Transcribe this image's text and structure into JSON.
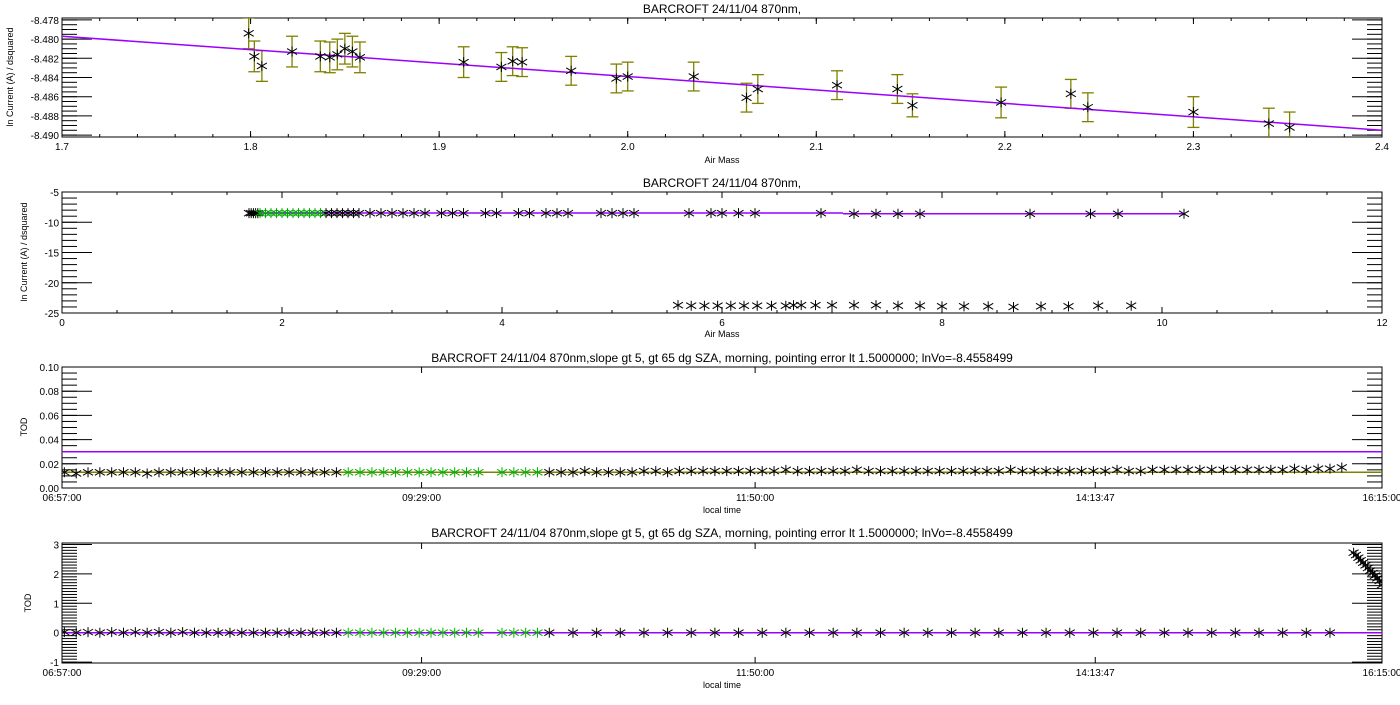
{
  "colors": {
    "star": "#000000",
    "selected": "#00b000",
    "fit": "#9b00ff",
    "errorbar": "#808000",
    "olive_line": "#808000"
  },
  "chart_data": [
    {
      "type": "scatter",
      "title": "BARCROFT 24/11/04 870nm,",
      "xlabel": "Air Mass",
      "ylabel": "ln Current (A) / dsquared",
      "xlim": [
        1.7,
        2.4
      ],
      "ylim": [
        -8.4902,
        -8.4778
      ],
      "xticks": [
        1.7,
        1.8,
        1.9,
        2.0,
        2.1,
        2.2,
        2.3,
        2.4
      ],
      "xtick_labels": [
        "1.7",
        "1.8",
        "1.9",
        "2.0",
        "2.1",
        "2.2",
        "2.3",
        "2.4"
      ],
      "xminor": 0.02,
      "yticks": [
        -8.478,
        -8.48,
        -8.482,
        -8.484,
        -8.486,
        -8.488,
        -8.49
      ],
      "ytick_labels": [
        "-8.478",
        "-8.480",
        "-8.482",
        "-8.484",
        "-8.486",
        "-8.488",
        "-8.490"
      ],
      "yminor": 0.0005,
      "series": [
        {
          "name": "measurements",
          "marker": "asterisk",
          "color": "#000000",
          "x": [
            1.799,
            1.802,
            1.806,
            1.822,
            1.837,
            1.842,
            1.846,
            1.85,
            1.854,
            1.858,
            1.913,
            1.933,
            1.939,
            1.944,
            1.97,
            1.994,
            2.0,
            2.035,
            2.063,
            2.069,
            2.111,
            2.143,
            2.151,
            2.198,
            2.235,
            2.244,
            2.3,
            2.34,
            2.351
          ],
          "y": [
            -8.4794,
            -8.4818,
            -8.4828,
            -8.4813,
            -8.4818,
            -8.4819,
            -8.4816,
            -8.481,
            -8.4813,
            -8.4819,
            -8.4824,
            -8.4829,
            -8.4823,
            -8.4824,
            -8.4833,
            -8.4841,
            -8.4839,
            -8.4839,
            -8.4861,
            -8.4852,
            -8.4848,
            -8.4852,
            -8.4869,
            -8.4866,
            -8.4857,
            -8.4871,
            -8.4876,
            -8.4888,
            -8.4892
          ],
          "err": [
            0.0016,
            0.0016,
            0.0016,
            0.0016,
            0.0016,
            0.0016,
            0.0016,
            0.0016,
            0.0016,
            0.0016,
            0.0016,
            0.0015,
            0.0015,
            0.0015,
            0.0015,
            0.0015,
            0.0015,
            0.0015,
            0.0015,
            0.0015,
            0.0015,
            0.0015,
            0.0012,
            0.0016,
            0.0015,
            0.0015,
            0.0016,
            0.0016,
            0.0016
          ]
        }
      ],
      "lines": [
        {
          "name": "fit",
          "color": "#9b00ff",
          "x": [
            1.7,
            2.4
          ],
          "y": [
            -8.4797,
            -8.4895
          ]
        }
      ]
    },
    {
      "type": "scatter",
      "title": "BARCROFT 24/11/04 870nm,",
      "xlabel": "Air Mass",
      "ylabel": "ln Current (A) / dsquared",
      "xlim": [
        0,
        12
      ],
      "ylim": [
        -25,
        -5
      ],
      "xticks": [
        0,
        2,
        4,
        6,
        8,
        10,
        12
      ],
      "xtick_labels": [
        "0",
        "2",
        "4",
        "6",
        "8",
        "10",
        "12"
      ],
      "xminor": 0.5,
      "yticks": [
        -5,
        -10,
        -15,
        -20,
        -25
      ],
      "ytick_labels": [
        "-5",
        "-10",
        "-15",
        "-20",
        "-25"
      ],
      "yminor": 1,
      "series": [
        {
          "name": "all",
          "marker": "asterisk",
          "color": "#000000",
          "x": [
            1.7,
            1.72,
            1.74,
            1.76,
            1.78,
            2.4,
            2.45,
            2.5,
            2.55,
            2.6,
            2.65,
            2.7,
            2.8,
            2.9,
            3.0,
            3.1,
            3.2,
            3.3,
            3.45,
            3.55,
            3.65,
            3.85,
            3.95,
            4.15,
            4.25,
            4.4,
            4.5,
            4.6,
            4.9,
            5.0,
            5.1,
            5.2,
            5.7,
            5.9,
            6.0,
            6.15,
            6.3,
            6.9,
            7.2,
            7.4,
            7.6,
            7.8,
            8.8,
            9.35,
            9.6,
            10.2
          ],
          "y": [
            -8.5,
            -8.5,
            -8.5,
            -8.5,
            -8.5,
            -8.5,
            -8.5,
            -8.5,
            -8.5,
            -8.5,
            -8.5,
            -8.5,
            -8.5,
            -8.5,
            -8.5,
            -8.5,
            -8.5,
            -8.5,
            -8.5,
            -8.5,
            -8.5,
            -8.5,
            -8.5,
            -8.5,
            -8.5,
            -8.5,
            -8.5,
            -8.5,
            -8.5,
            -8.5,
            -8.5,
            -8.5,
            -8.5,
            -8.5,
            -8.5,
            -8.5,
            -8.5,
            -8.5,
            -8.6,
            -8.6,
            -8.6,
            -8.6,
            -8.6,
            -8.6,
            -8.6,
            -8.6
          ]
        },
        {
          "name": "rejected-low",
          "marker": "asterisk",
          "color": "#000000",
          "x": [
            5.6,
            5.72,
            5.84,
            5.96,
            6.08,
            6.2,
            6.32,
            6.45,
            6.58,
            6.65,
            6.72,
            6.85,
            7.0,
            7.2,
            7.4,
            7.6,
            7.8,
            8.0,
            8.2,
            8.42,
            8.65,
            8.9,
            9.15,
            9.42,
            9.72
          ],
          "y": [
            -23.7,
            -23.8,
            -23.8,
            -23.8,
            -23.8,
            -23.8,
            -23.8,
            -23.8,
            -23.8,
            -23.7,
            -23.7,
            -23.7,
            -23.7,
            -23.7,
            -23.7,
            -23.8,
            -23.8,
            -23.9,
            -23.9,
            -23.9,
            -24.0,
            -23.9,
            -23.9,
            -23.8,
            -23.8
          ]
        },
        {
          "name": "selected",
          "marker": "asterisk",
          "color": "#00b000",
          "x": [
            1.8,
            1.85,
            1.9,
            1.95,
            2.0,
            2.05,
            2.1,
            2.15,
            2.2,
            2.25,
            2.3,
            2.35
          ],
          "y": [
            -8.5,
            -8.5,
            -8.5,
            -8.5,
            -8.5,
            -8.5,
            -8.5,
            -8.5,
            -8.5,
            -8.5,
            -8.5,
            -8.5
          ]
        }
      ],
      "lines": [
        {
          "name": "fit-1",
          "color": "#9b00ff",
          "x": [
            1.7,
            7.1
          ],
          "y": [
            -8.48,
            -8.48
          ]
        },
        {
          "name": "fit-2",
          "color": "#9b00ff",
          "x": [
            7.1,
            10.2
          ],
          "y": [
            -8.6,
            -8.6
          ]
        }
      ]
    },
    {
      "type": "scatter",
      "title": "BARCROFT 24/11/04 870nm,slope gt 5, gt 65 dg SZA, morning, pointing error lt 1.5000000; lnVo=-8.4558499",
      "xlabel": "local time",
      "ylabel": "TOD",
      "xlim": [
        "06:57:00",
        "16:15:00"
      ],
      "ylim": [
        0,
        0.1
      ],
      "xticks": [
        "06:57:00",
        "09:29:00",
        "11:50:00",
        "14:13:47",
        "16:15:00"
      ],
      "xtick_labels": [
        "06:57:00",
        "09:29:00",
        "11:50:00",
        "14:13:47",
        "16:15:00"
      ],
      "yticks": [
        0,
        0.02,
        0.04,
        0.06,
        0.08,
        0.1
      ],
      "ytick_labels": [
        "0.00",
        "0.02",
        "0.04",
        "0.06",
        "0.08",
        "0.10"
      ],
      "yminor": 0.005,
      "series": [
        {
          "name": "morning-1",
          "marker": "asterisk",
          "color": "#000000",
          "x": [
            "06:58",
            "07:03",
            "07:08",
            "07:13",
            "07:18",
            "07:23",
            "07:28",
            "07:33",
            "07:38",
            "07:43",
            "07:48",
            "07:53",
            "07:58",
            "08:03",
            "08:08",
            "08:13",
            "08:18",
            "08:23",
            "08:28",
            "08:33",
            "08:38",
            "08:43",
            "08:48",
            "08:53"
          ],
          "y": [
            0.013,
            0.012,
            0.013,
            0.013,
            0.013,
            0.013,
            0.013,
            0.012,
            0.013,
            0.013,
            0.013,
            0.013,
            0.013,
            0.013,
            0.013,
            0.013,
            0.013,
            0.013,
            0.013,
            0.013,
            0.013,
            0.013,
            0.013,
            0.013
          ]
        },
        {
          "name": "selected",
          "marker": "asterisk",
          "color": "#00b000",
          "x": [
            "08:58",
            "09:03",
            "09:08",
            "09:13",
            "09:18",
            "09:23",
            "09:28",
            "09:33",
            "09:38",
            "09:43",
            "09:48",
            "09:53",
            "10:03",
            "10:08",
            "10:13",
            "10:18"
          ],
          "y": [
            0.013,
            0.013,
            0.013,
            0.013,
            0.013,
            0.013,
            0.013,
            0.013,
            0.013,
            0.013,
            0.013,
            0.013,
            0.013,
            0.013,
            0.013,
            0.013
          ]
        },
        {
          "name": "rest",
          "marker": "asterisk",
          "color": "#000000",
          "x": [
            "10:23",
            "10:28",
            "10:33",
            "10:38",
            "10:43",
            "10:48",
            "10:53",
            "10:58",
            "11:03",
            "11:08",
            "11:13",
            "11:18",
            "11:23",
            "11:28",
            "11:33",
            "11:38",
            "11:43",
            "11:48",
            "11:53",
            "11:58",
            "12:03",
            "12:08",
            "12:13",
            "12:18",
            "12:23",
            "12:28",
            "12:33",
            "12:38",
            "12:43",
            "12:48",
            "12:53",
            "12:58",
            "13:03",
            "13:08",
            "13:13",
            "13:18",
            "13:23",
            "13:28",
            "13:33",
            "13:38",
            "13:43",
            "13:48",
            "13:53",
            "13:58",
            "14:03",
            "14:08",
            "14:13",
            "14:18",
            "14:23",
            "14:28",
            "14:33",
            "14:38",
            "14:43",
            "14:48",
            "14:53",
            "14:58",
            "15:03",
            "15:08",
            "15:13",
            "15:18",
            "15:23",
            "15:28",
            "15:33",
            "15:38",
            "15:43",
            "15:48",
            "15:53",
            "15:58"
          ],
          "y": [
            0.013,
            0.013,
            0.013,
            0.014,
            0.013,
            0.013,
            0.013,
            0.013,
            0.014,
            0.014,
            0.013,
            0.014,
            0.014,
            0.014,
            0.014,
            0.014,
            0.014,
            0.014,
            0.014,
            0.014,
            0.015,
            0.014,
            0.014,
            0.014,
            0.014,
            0.014,
            0.015,
            0.014,
            0.014,
            0.014,
            0.014,
            0.014,
            0.014,
            0.014,
            0.014,
            0.014,
            0.014,
            0.014,
            0.014,
            0.015,
            0.014,
            0.014,
            0.014,
            0.014,
            0.014,
            0.014,
            0.014,
            0.014,
            0.015,
            0.014,
            0.014,
            0.015,
            0.015,
            0.015,
            0.015,
            0.015,
            0.015,
            0.015,
            0.015,
            0.015,
            0.015,
            0.015,
            0.015,
            0.016,
            0.015,
            0.016,
            0.016,
            0.017
          ]
        }
      ],
      "lines": [
        {
          "name": "threshold",
          "color": "#9b00ff",
          "x": [
            "06:57:00",
            "16:15:00"
          ],
          "y": [
            0.03,
            0.03
          ]
        },
        {
          "name": "mean",
          "color": "#808000",
          "x": [
            "06:57:00",
            "16:15:00"
          ],
          "y": [
            0.013,
            0.013
          ]
        }
      ]
    },
    {
      "type": "scatter",
      "title": "BARCROFT 24/11/04 870nm,slope gt 5, gt 65 dg SZA, morning, pointing error lt 1.5000000; lnVo=-8.4558499",
      "xlabel": "local time",
      "ylabel": "TOD",
      "xlim": [
        "06:57:00",
        "16:15:00"
      ],
      "ylim": [
        -1.03,
        3.05
      ],
      "xticks": [
        "06:57:00",
        "09:29:00",
        "11:50:00",
        "14:13:47",
        "16:15:00"
      ],
      "xtick_labels": [
        "06:57:00",
        "09:29:00",
        "11:50:00",
        "14:13:47",
        "16:15:00"
      ],
      "yticks": [
        -1,
        0,
        1,
        2,
        3
      ],
      "ytick_labels": [
        "-1",
        "0",
        "1",
        "2",
        "3"
      ],
      "yminor": 0.1,
      "series": [
        {
          "name": "morning-1",
          "marker": "asterisk",
          "color": "#000000",
          "x": [
            "06:58",
            "07:03",
            "07:08",
            "07:13",
            "07:18",
            "07:23",
            "07:28",
            "07:33",
            "07:38",
            "07:43",
            "07:48",
            "07:53",
            "07:58",
            "08:03",
            "08:08",
            "08:13",
            "08:18",
            "08:23",
            "08:28",
            "08:33",
            "08:38",
            "08:43",
            "08:48",
            "08:53"
          ],
          "y": [
            0.02,
            0,
            0.02,
            0,
            0.02,
            0,
            0.02,
            0,
            0.02,
            0,
            0.02,
            0,
            0,
            0,
            0,
            0,
            0,
            0,
            0,
            0,
            0,
            0,
            0,
            0
          ]
        },
        {
          "name": "selected",
          "marker": "asterisk",
          "color": "#00b000",
          "x": [
            "08:58",
            "09:03",
            "09:08",
            "09:13",
            "09:18",
            "09:23",
            "09:28",
            "09:33",
            "09:38",
            "09:43",
            "09:48",
            "09:53",
            "10:03",
            "10:08",
            "10:13",
            "10:18"
          ],
          "y": [
            0,
            0,
            0,
            0,
            0,
            0,
            0,
            0,
            0,
            0,
            0,
            0,
            0,
            0,
            0,
            0
          ]
        },
        {
          "name": "rest",
          "marker": "asterisk",
          "color": "#000000",
          "x": [
            "10:23",
            "10:33",
            "10:43",
            "10:53",
            "11:03",
            "11:13",
            "11:23",
            "11:33",
            "11:43",
            "11:53",
            "12:03",
            "12:13",
            "12:23",
            "12:33",
            "12:43",
            "12:53",
            "13:03",
            "13:13",
            "13:23",
            "13:33",
            "13:43",
            "13:53",
            "14:03",
            "14:13",
            "14:23",
            "14:33",
            "14:43",
            "14:53",
            "15:03",
            "15:13",
            "15:23",
            "15:33",
            "15:43",
            "15:53"
          ],
          "y": [
            0,
            0,
            0,
            0,
            0,
            0,
            0,
            0,
            0,
            0,
            0,
            0,
            0,
            0,
            0,
            0,
            0,
            0,
            0,
            0,
            0,
            0,
            0,
            0,
            0,
            0,
            0,
            0,
            0,
            0,
            0,
            0,
            0,
            0
          ]
        },
        {
          "name": "afternoon-high",
          "marker": "asterisk",
          "color": "#000000",
          "x": [
            "16:03",
            "16:04",
            "16:05",
            "16:06",
            "16:07",
            "16:08",
            "16:09",
            "16:10",
            "16:11",
            "16:12",
            "16:13",
            "16:14",
            "16:15"
          ],
          "y": [
            2.72,
            2.64,
            2.55,
            2.46,
            2.38,
            2.29,
            2.2,
            2.11,
            2.03,
            1.94,
            1.85,
            1.76,
            1.62
          ]
        }
      ],
      "lines": [
        {
          "name": "zero",
          "color": "#9b00ff",
          "x": [
            "06:57:00",
            "16:15:00"
          ],
          "y": [
            0,
            0
          ]
        }
      ]
    }
  ]
}
